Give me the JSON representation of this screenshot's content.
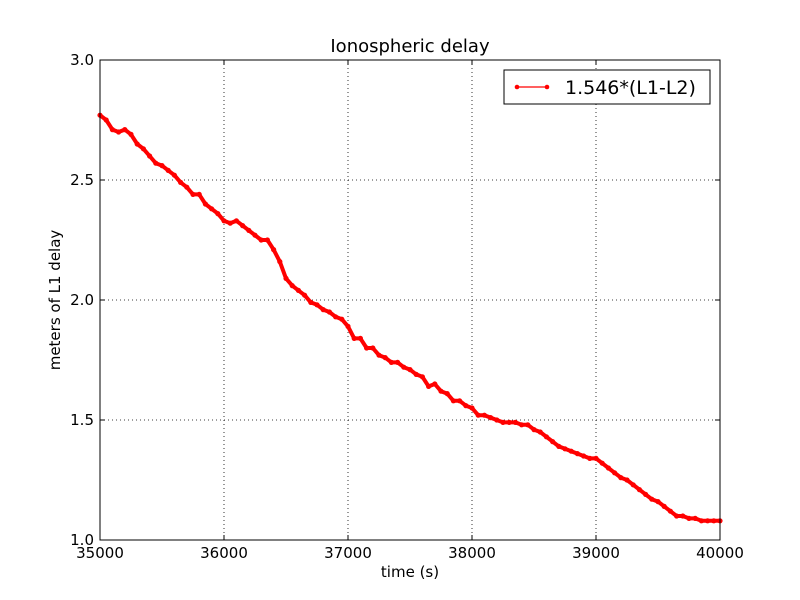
{
  "chart_data": {
    "type": "line",
    "title": "Ionospheric delay",
    "xlabel": "time (s)",
    "ylabel": "meters of L1 delay",
    "xlim": [
      35000,
      40000
    ],
    "ylim": [
      1.0,
      3.0
    ],
    "xticks": [
      35000,
      36000,
      37000,
      38000,
      39000,
      40000
    ],
    "xtick_labels": [
      "35000",
      "36000",
      "37000",
      "38000",
      "39000",
      "40000"
    ],
    "yticks": [
      1.0,
      1.5,
      2.0,
      2.5,
      3.0
    ],
    "ytick_labels": [
      "1.0",
      "1.5",
      "2.0",
      "2.5",
      "3.0"
    ],
    "grid": true,
    "legend": "top-right",
    "series": [
      {
        "name": "1.546*(L1-L2)",
        "color": "#ff0000",
        "marker": "dot",
        "x": [
          35000,
          35050,
          35100,
          35150,
          35200,
          35250,
          35300,
          35350,
          35400,
          35450,
          35500,
          35550,
          35600,
          35650,
          35700,
          35750,
          35800,
          35850,
          35900,
          35950,
          36000,
          36050,
          36100,
          36150,
          36200,
          36250,
          36300,
          36350,
          36400,
          36450,
          36500,
          36550,
          36600,
          36650,
          36700,
          36750,
          36800,
          36850,
          36900,
          36950,
          37000,
          37050,
          37100,
          37150,
          37200,
          37250,
          37300,
          37350,
          37400,
          37450,
          37500,
          37550,
          37600,
          37650,
          37700,
          37750,
          37800,
          37850,
          37900,
          37950,
          38000,
          38050,
          38100,
          38150,
          38200,
          38250,
          38300,
          38350,
          38400,
          38450,
          38500,
          38550,
          38600,
          38650,
          38700,
          38750,
          38800,
          38850,
          38900,
          38950,
          39000,
          39050,
          39100,
          39150,
          39200,
          39250,
          39300,
          39350,
          39400,
          39450,
          39500,
          39550,
          39600,
          39650,
          39700,
          39750,
          39800,
          39850,
          39900,
          39950,
          40000
        ],
        "y": [
          2.77,
          2.75,
          2.71,
          2.7,
          2.71,
          2.69,
          2.65,
          2.63,
          2.6,
          2.57,
          2.56,
          2.54,
          2.52,
          2.49,
          2.47,
          2.44,
          2.44,
          2.4,
          2.38,
          2.36,
          2.33,
          2.32,
          2.33,
          2.31,
          2.29,
          2.27,
          2.25,
          2.25,
          2.21,
          2.16,
          2.09,
          2.06,
          2.04,
          2.02,
          1.99,
          1.98,
          1.96,
          1.95,
          1.93,
          1.92,
          1.89,
          1.84,
          1.84,
          1.8,
          1.8,
          1.77,
          1.76,
          1.74,
          1.74,
          1.72,
          1.71,
          1.69,
          1.68,
          1.64,
          1.65,
          1.62,
          1.61,
          1.58,
          1.58,
          1.56,
          1.55,
          1.52,
          1.52,
          1.51,
          1.5,
          1.49,
          1.49,
          1.49,
          1.48,
          1.48,
          1.46,
          1.45,
          1.43,
          1.41,
          1.39,
          1.38,
          1.37,
          1.36,
          1.35,
          1.34,
          1.34,
          1.32,
          1.3,
          1.28,
          1.26,
          1.25,
          1.23,
          1.21,
          1.19,
          1.17,
          1.16,
          1.14,
          1.12,
          1.1,
          1.1,
          1.09,
          1.09,
          1.08,
          1.08,
          1.08,
          1.08
        ]
      }
    ]
  }
}
